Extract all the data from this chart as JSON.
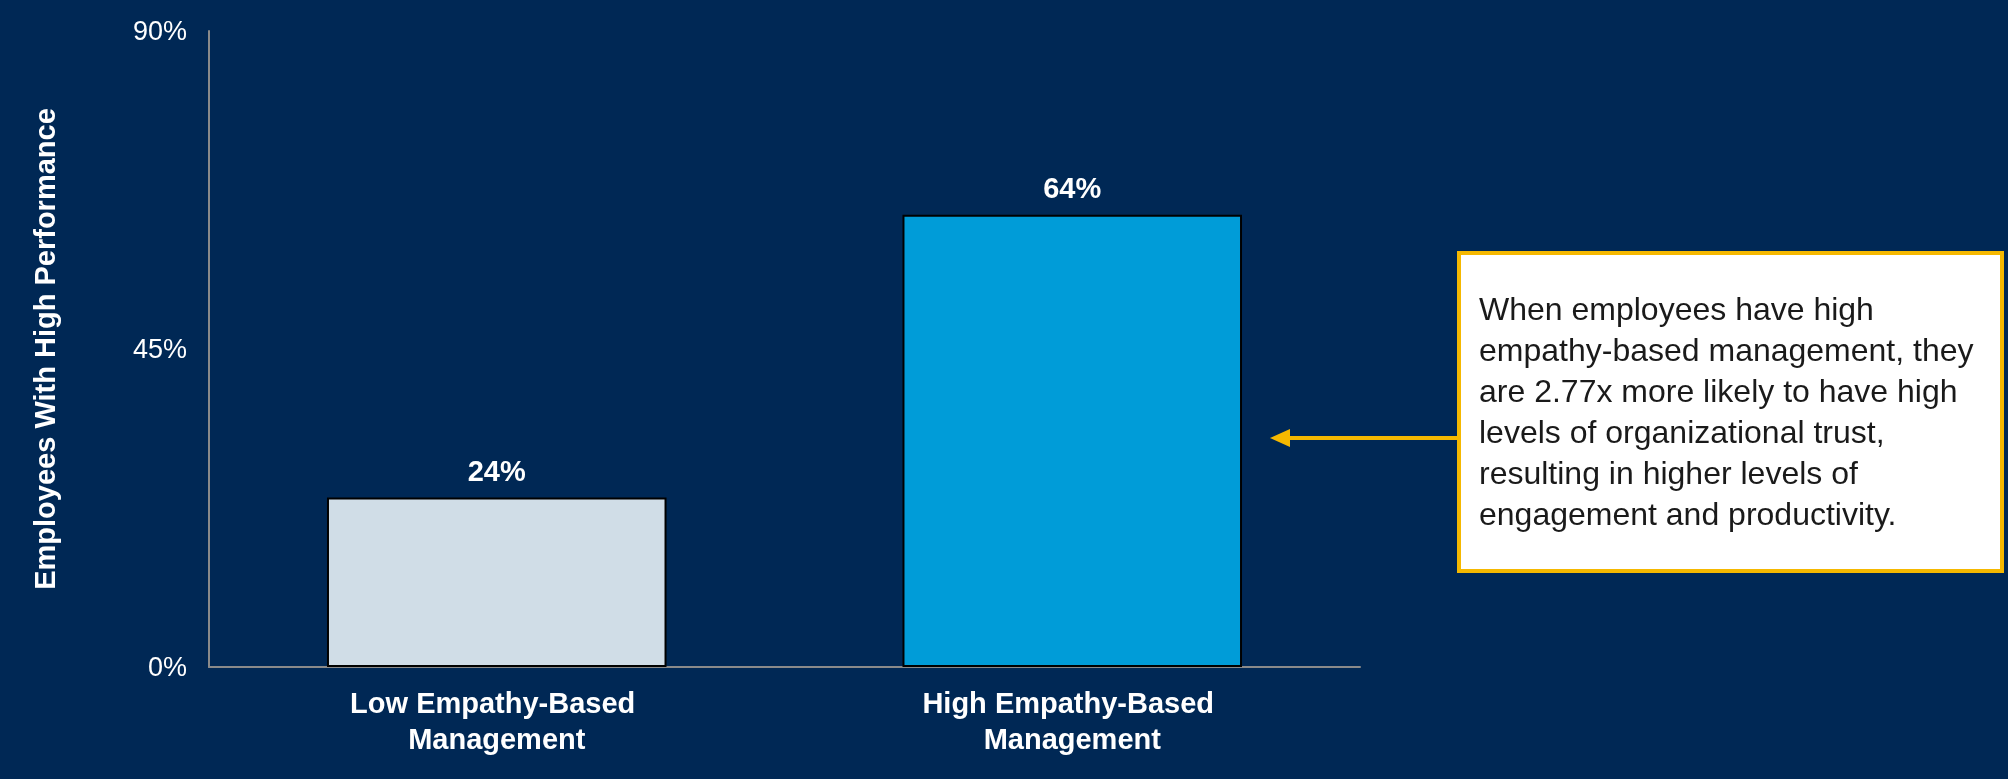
{
  "chart_data": {
    "type": "bar",
    "ylabel": "Employees With High Performance",
    "categories": [
      "Low Empathy-Based Management",
      "High Empathy-Based Management"
    ],
    "values": [
      24,
      64
    ],
    "colors": [
      "#d0dde7",
      "#009cd8"
    ],
    "value_labels": [
      "24%",
      "64%"
    ],
    "ylim": [
      0,
      90
    ],
    "yticks": [
      {
        "value": 0,
        "label": "0%"
      },
      {
        "value": 45,
        "label": "45%"
      },
      {
        "value": 90,
        "label": "90%"
      }
    ],
    "grid": false,
    "annotations": [
      "When employees have high empathy-based management, they are 2.77x more likely to have high levels of organizational trust, resulting in higher levels of engagement and productivity."
    ]
  }
}
